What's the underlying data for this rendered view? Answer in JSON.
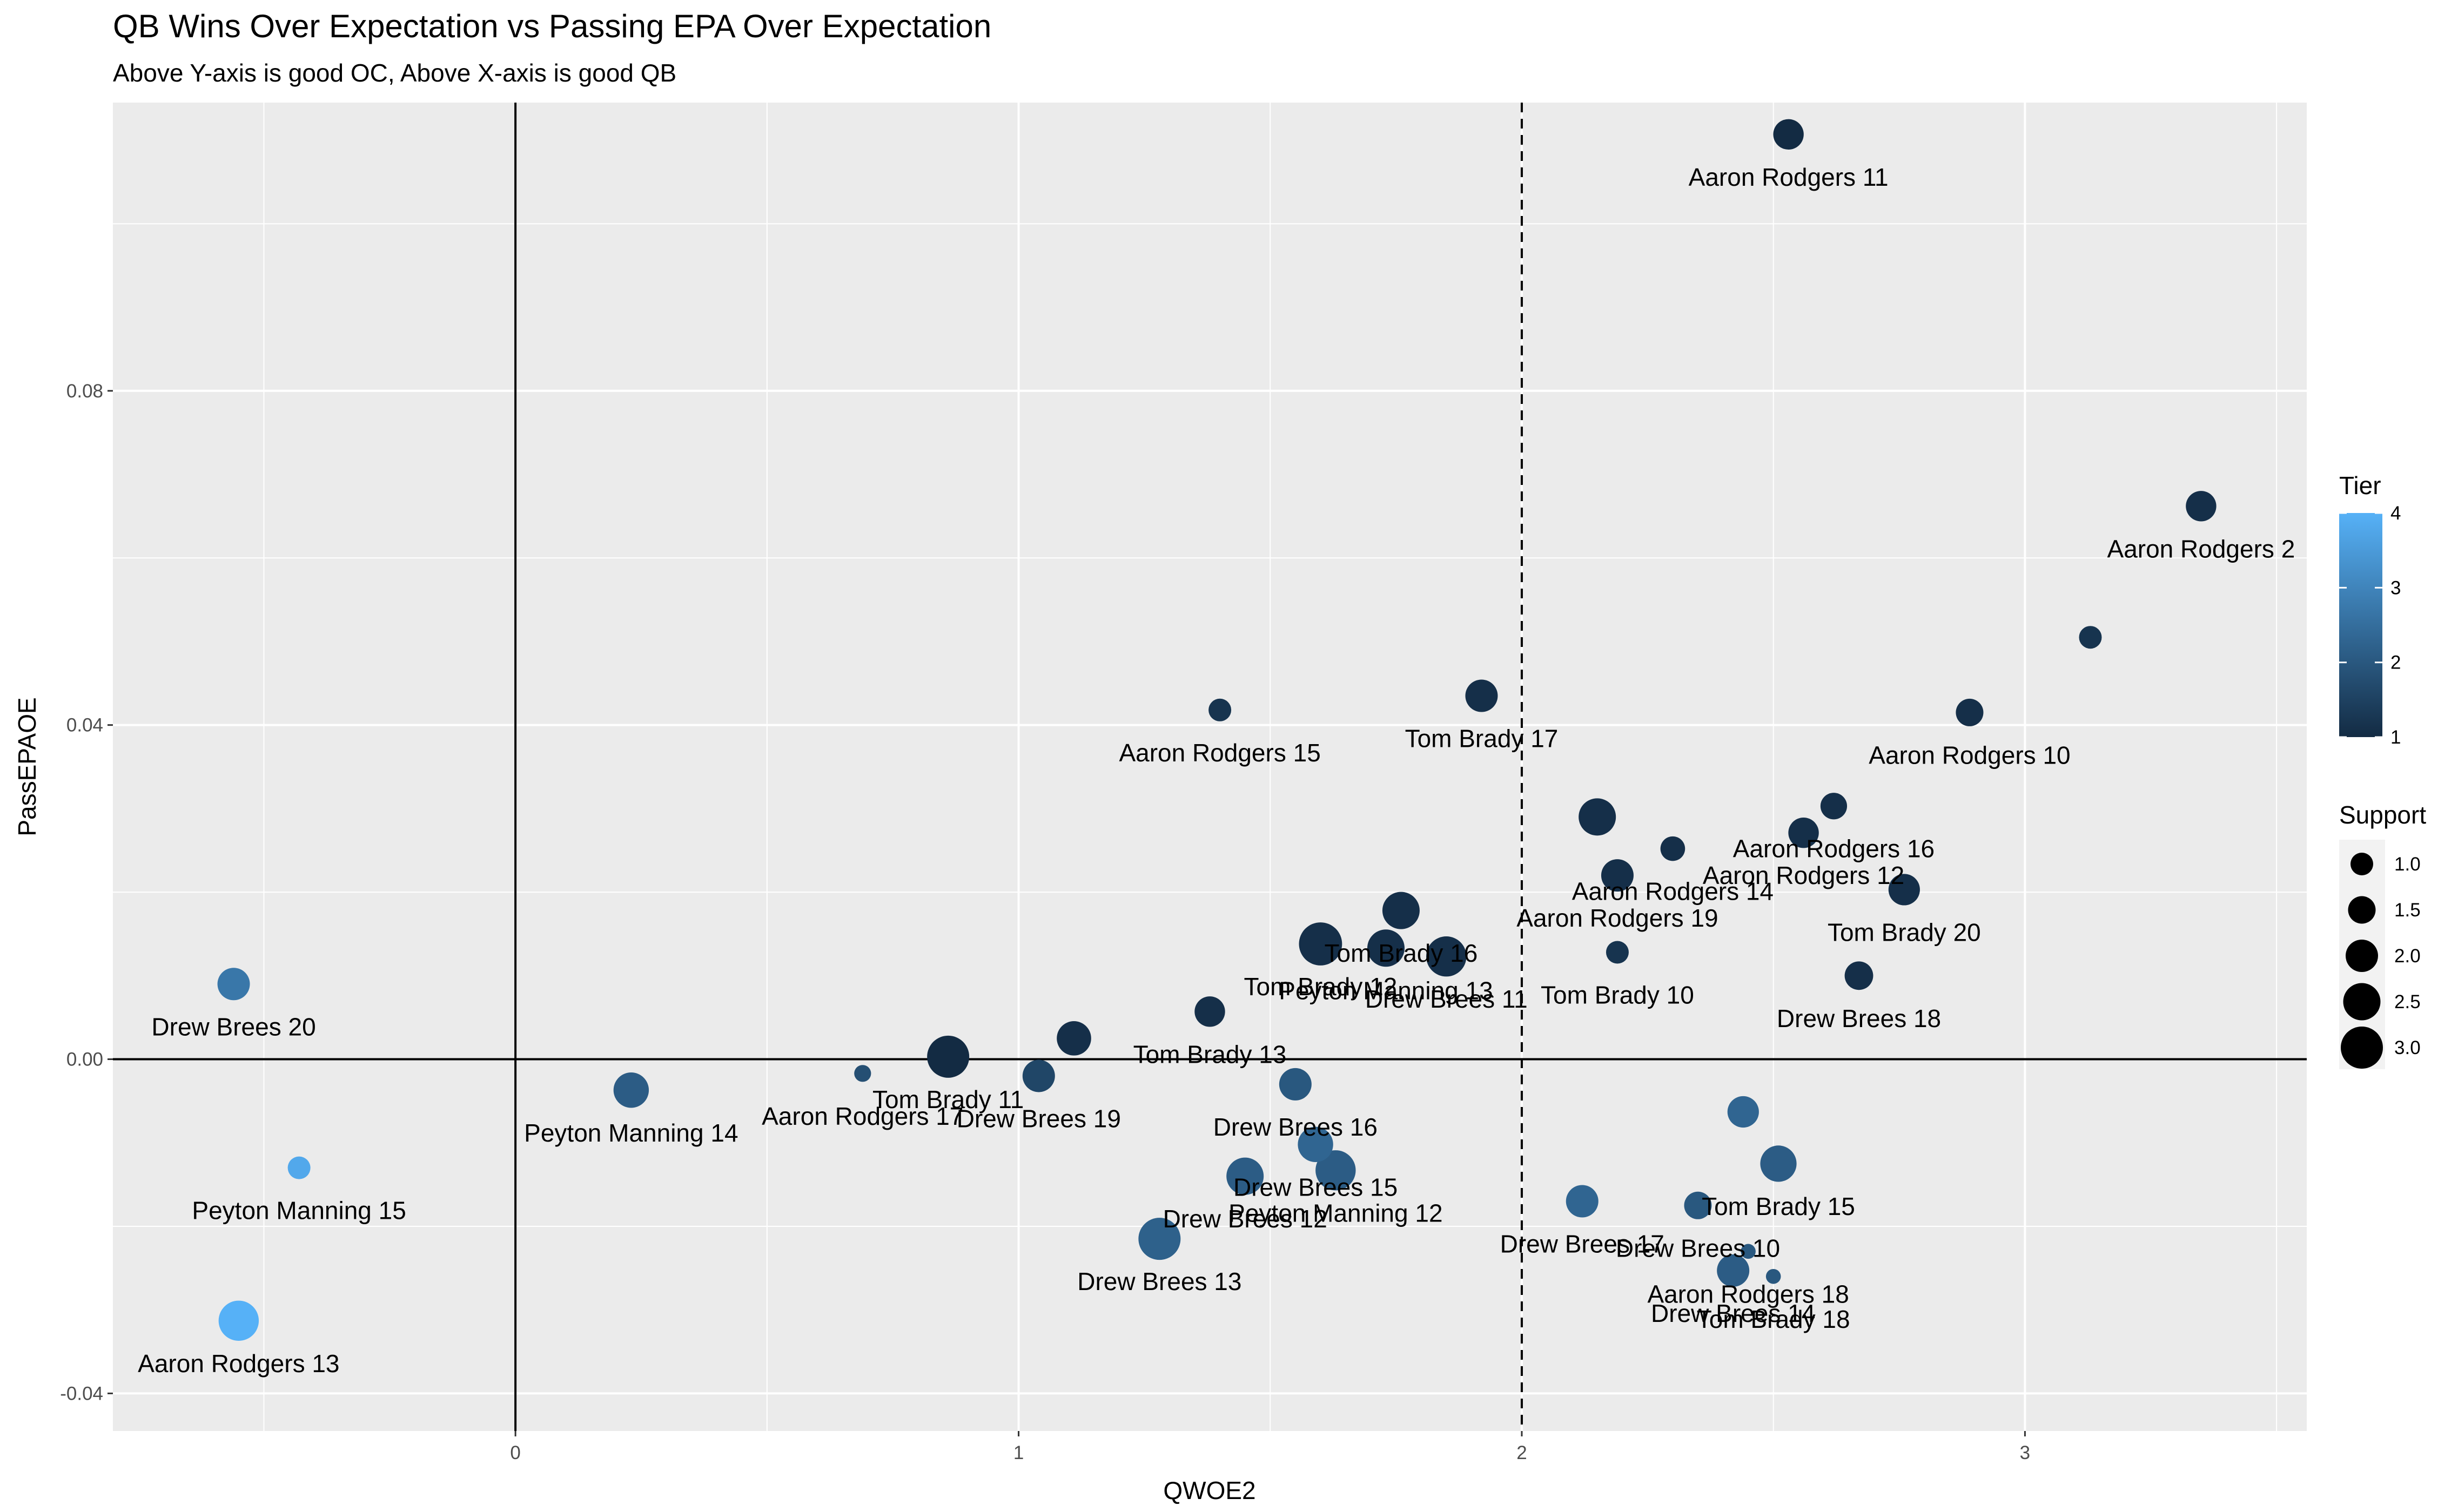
{
  "chart_data": {
    "type": "scatter",
    "title": "QB Wins Over Expectation vs Passing EPA Over Expectation",
    "subtitle": "Above Y-axis is good OC, Above X-axis is good QB",
    "xlabel": "QWOE2",
    "ylabel": "PassEPAOE",
    "xlim": [
      -0.8,
      3.56
    ],
    "ylim": [
      -0.0445,
      0.1145
    ],
    "xticks": [
      0,
      1,
      2,
      3
    ],
    "xtick_labels": [
      "0",
      "1",
      "2",
      "3"
    ],
    "yticks": [
      -0.04,
      0.0,
      0.04,
      0.08
    ],
    "ytick_labels": [
      "-0.04",
      "0.00",
      "0.04",
      "0.08"
    ],
    "grid": true,
    "reference_lines": {
      "x_zero": 0,
      "y_zero": 0,
      "x_dashed": 2
    },
    "color_legend": {
      "title": "Tier",
      "min": 1,
      "max": 4,
      "labels": [
        "1",
        "2",
        "3",
        "4"
      ],
      "low_color": "#132b43",
      "high_color": "#56b1f7"
    },
    "size_legend": {
      "title": "Support",
      "values": [
        1.0,
        1.5,
        2.0,
        2.5,
        3.0
      ],
      "labels": [
        "1.0",
        "1.5",
        "2.0",
        "2.5",
        "3.0"
      ]
    },
    "legend_position": "right",
    "points": [
      {
        "x": 2.53,
        "y": 0.1107,
        "tier": 1.0,
        "support": 1.8,
        "label": "Aaron Rodgers 11"
      },
      {
        "x": 3.35,
        "y": 0.0662,
        "tier": 1.1,
        "support": 1.8,
        "label": "Aaron Rodgers 2"
      },
      {
        "x": 3.13,
        "y": 0.0505,
        "tier": 1.2,
        "support": 1.0,
        "label": ""
      },
      {
        "x": 2.89,
        "y": 0.0415,
        "tier": 1.1,
        "support": 1.5,
        "label": "Aaron Rodgers 10"
      },
      {
        "x": 1.4,
        "y": 0.0418,
        "tier": 1.2,
        "support": 1.0,
        "label": "Aaron Rodgers 15"
      },
      {
        "x": 1.92,
        "y": 0.0435,
        "tier": 1.1,
        "support": 2.0,
        "label": "Tom Brady 17"
      },
      {
        "x": 2.62,
        "y": 0.0303,
        "tier": 1.1,
        "support": 1.4,
        "label": "Aaron Rodgers 16"
      },
      {
        "x": 2.15,
        "y": 0.029,
        "tier": 1.1,
        "support": 2.5,
        "label": ""
      },
      {
        "x": 2.56,
        "y": 0.0271,
        "tier": 1.1,
        "support": 1.8,
        "label": "Aaron Rodgers 12"
      },
      {
        "x": 2.3,
        "y": 0.0252,
        "tier": 1.1,
        "support": 1.2,
        "label": "Aaron Rodgers 14"
      },
      {
        "x": 2.19,
        "y": 0.022,
        "tier": 1.1,
        "support": 2.0,
        "label": "Aaron Rodgers 19"
      },
      {
        "x": 2.76,
        "y": 0.0203,
        "tier": 1.1,
        "support": 1.9,
        "label": "Tom Brady 20"
      },
      {
        "x": 1.76,
        "y": 0.0178,
        "tier": 1.1,
        "support": 2.5,
        "label": "Tom Brady 16"
      },
      {
        "x": 2.19,
        "y": 0.0128,
        "tier": 1.2,
        "support": 1.0,
        "label": "Tom Brady 10"
      },
      {
        "x": 2.67,
        "y": 0.01,
        "tier": 1.1,
        "support": 1.6,
        "label": "Drew Brees 18"
      },
      {
        "x": 1.6,
        "y": 0.0138,
        "tier": 1.1,
        "support": 3.1,
        "label": "Tom Brady 12"
      },
      {
        "x": 1.73,
        "y": 0.0133,
        "tier": 1.1,
        "support": 2.5,
        "label": "Peyton Manning 13"
      },
      {
        "x": 1.85,
        "y": 0.0123,
        "tier": 1.1,
        "support": 2.8,
        "label": "Drew Brees 11"
      },
      {
        "x": 1.38,
        "y": 0.0057,
        "tier": 1.1,
        "support": 1.8,
        "label": "Tom Brady 13"
      },
      {
        "x": 1.11,
        "y": 0.0025,
        "tier": 1.1,
        "support": 2.2,
        "label": ""
      },
      {
        "x": 0.86,
        "y": 0.0003,
        "tier": 1.0,
        "support": 3.0,
        "label": "Tom Brady 11"
      },
      {
        "x": 1.04,
        "y": -0.002,
        "tier": 1.6,
        "support": 2.0,
        "label": "Drew Brees 19"
      },
      {
        "x": 0.69,
        "y": -0.0017,
        "tier": 1.8,
        "support": 0.4,
        "label": "Aaron Rodgers 17"
      },
      {
        "x": 1.55,
        "y": -0.003,
        "tier": 2.0,
        "support": 2.0,
        "label": "Drew Brees 16"
      },
      {
        "x": 0.23,
        "y": -0.0037,
        "tier": 2.1,
        "support": 2.3,
        "label": "Peyton Manning 14"
      },
      {
        "x": 1.59,
        "y": -0.0102,
        "tier": 2.3,
        "support": 2.3,
        "label": "Drew Brees 15"
      },
      {
        "x": 1.63,
        "y": -0.0133,
        "tier": 2.1,
        "support": 2.8,
        "label": "Peyton Manning 12"
      },
      {
        "x": 1.45,
        "y": -0.014,
        "tier": 2.1,
        "support": 2.5,
        "label": "Drew Brees 12"
      },
      {
        "x": 1.28,
        "y": -0.0215,
        "tier": 2.2,
        "support": 3.0,
        "label": "Drew Brees 13"
      },
      {
        "x": 2.44,
        "y": -0.0063,
        "tier": 2.3,
        "support": 1.9,
        "label": ""
      },
      {
        "x": 2.51,
        "y": -0.0125,
        "tier": 2.1,
        "support": 2.4,
        "label": "Tom Brady 15"
      },
      {
        "x": 2.12,
        "y": -0.017,
        "tier": 2.3,
        "support": 2.0,
        "label": "Drew Brees 17"
      },
      {
        "x": 2.35,
        "y": -0.0175,
        "tier": 2.0,
        "support": 1.5,
        "label": "Drew Brees 10"
      },
      {
        "x": 2.42,
        "y": -0.0253,
        "tier": 2.1,
        "support": 2.0,
        "label": "Drew Brees 14"
      },
      {
        "x": 2.5,
        "y": -0.026,
        "tier": 2.0,
        "support": 0.2,
        "label": "Tom Brady 18"
      },
      {
        "x": 2.45,
        "y": -0.023,
        "tier": 2.0,
        "support": 0.2,
        "label": "Aaron Rodgers 18"
      },
      {
        "x": -0.56,
        "y": 0.009,
        "tier": 2.7,
        "support": 2.0,
        "label": "Drew Brees 20"
      },
      {
        "x": -0.43,
        "y": -0.013,
        "tier": 3.8,
        "support": 1.0,
        "label": "Peyton Manning 15"
      },
      {
        "x": -0.55,
        "y": -0.0313,
        "tier": 4.0,
        "support": 2.8,
        "label": "Aaron Rodgers 13"
      }
    ]
  }
}
